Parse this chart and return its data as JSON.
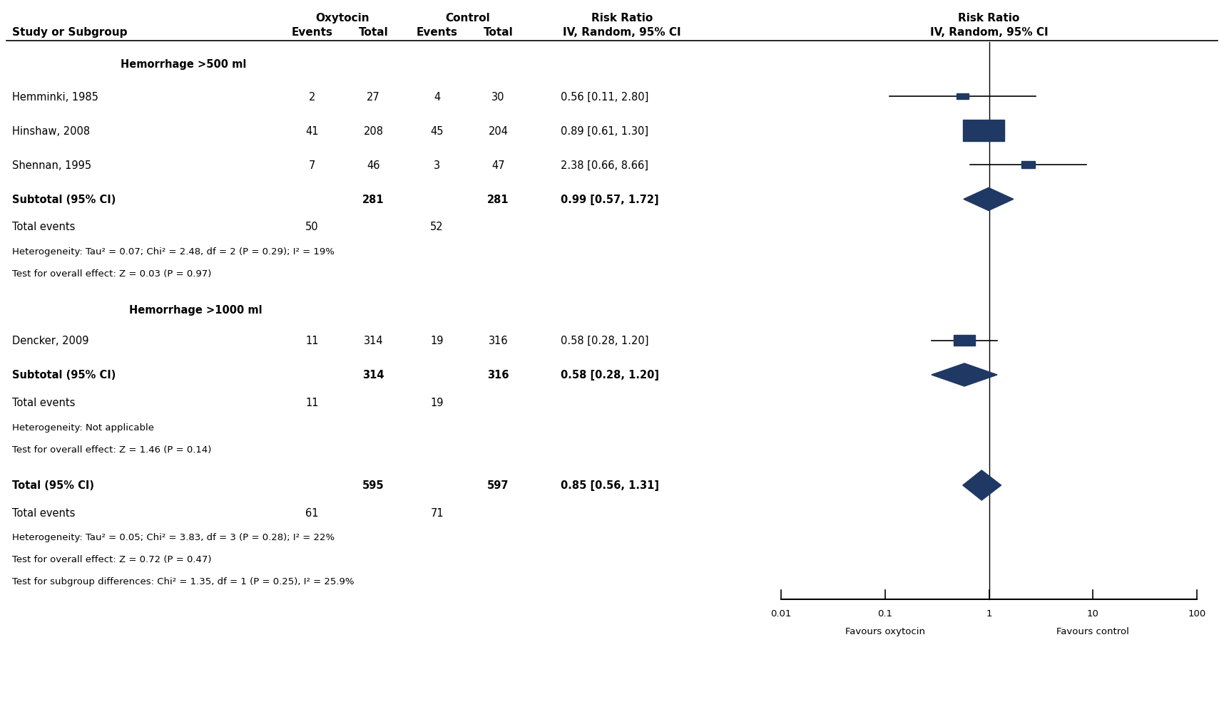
{
  "title": "",
  "header_row": {
    "oxytocin_label": "Oxytocin",
    "control_label": "Control",
    "rr_label": "Risk Ratio",
    "rr_label2": "Risk Ratio",
    "col_study": "Study or Subgroup",
    "col_oxy_events": "Events",
    "col_oxy_total": "Total",
    "col_ctrl_events": "Events",
    "col_ctrl_total": "Total",
    "col_rr": "IV, Random, 95% CI",
    "col_rr2": "IV, Random, 95% CI"
  },
  "subgroup1": {
    "label": "Hemorrhage >500 ml",
    "studies": [
      {
        "name": "Hemminki, 1985",
        "oxy_events": 2,
        "oxy_total": 27,
        "ctrl_events": 4,
        "ctrl_total": 30,
        "rr": 0.56,
        "ci_low": 0.11,
        "ci_high": 2.8,
        "rr_label": "0.56 [0.11, 2.80]"
      },
      {
        "name": "Hinshaw, 2008",
        "oxy_events": 41,
        "oxy_total": 208,
        "ctrl_events": 45,
        "ctrl_total": 204,
        "rr": 0.89,
        "ci_low": 0.61,
        "ci_high": 1.3,
        "rr_label": "0.89 [0.61, 1.30]"
      },
      {
        "name": "Shennan, 1995",
        "oxy_events": 7,
        "oxy_total": 46,
        "ctrl_events": 3,
        "ctrl_total": 47,
        "rr": 2.38,
        "ci_low": 0.66,
        "ci_high": 8.66,
        "rr_label": "2.38 [0.66, 8.66]"
      }
    ],
    "subtotal": {
      "oxy_total": 281,
      "ctrl_total": 281,
      "rr": 0.99,
      "ci_low": 0.57,
      "ci_high": 1.72,
      "rr_label": "0.99 [0.57, 1.72]"
    },
    "total_events_oxy": 50,
    "total_events_ctrl": 52,
    "heterogeneity": "Heterogeneity: Tau² = 0.07; Chi² = 2.48, df = 2 (P = 0.29); I² = 19%",
    "overall_effect": "Test for overall effect: Z = 0.03 (P = 0.97)"
  },
  "subgroup2": {
    "label": "Hemorrhage >1000 ml",
    "studies": [
      {
        "name": "Dencker, 2009",
        "oxy_events": 11,
        "oxy_total": 314,
        "ctrl_events": 19,
        "ctrl_total": 316,
        "rr": 0.58,
        "ci_low": 0.28,
        "ci_high": 1.2,
        "rr_label": "0.58 [0.28, 1.20]"
      }
    ],
    "subtotal": {
      "oxy_total": 314,
      "ctrl_total": 316,
      "rr": 0.58,
      "ci_low": 0.28,
      "ci_high": 1.2,
      "rr_label": "0.58 [0.28, 1.20]"
    },
    "total_events_oxy": 11,
    "total_events_ctrl": 19,
    "heterogeneity": "Heterogeneity: Not applicable",
    "overall_effect": "Test for overall effect: Z = 1.46 (P = 0.14)"
  },
  "total": {
    "oxy_total": 595,
    "ctrl_total": 597,
    "rr": 0.85,
    "ci_low": 0.56,
    "ci_high": 1.31,
    "rr_label": "0.85 [0.56, 1.31]",
    "total_events_oxy": 61,
    "total_events_ctrl": 71,
    "heterogeneity": "Heterogeneity: Tau² = 0.05; Chi² = 3.83, df = 3 (P = 0.28); I² = 22%",
    "overall_effect": "Test for overall effect: Z = 0.72 (P = 0.47)",
    "subgroup_diff": "Test for subgroup differences: Chi² = 1.35, df = 1 (P = 0.25), I² = 25.9%"
  },
  "axis": {
    "xmin": 0.01,
    "xmax": 100,
    "xticks": [
      0.01,
      0.1,
      1,
      10,
      100
    ],
    "xtick_labels": [
      "0.01",
      "0.1",
      "1",
      "10",
      "100"
    ],
    "xlabel_left": "Favours oxytocin",
    "xlabel_right": "Favours control"
  },
  "colors": {
    "diamond": "#1F3864",
    "square": "#1F3864",
    "line": "#000000",
    "text": "#000000",
    "background": "#FFFFFF"
  }
}
